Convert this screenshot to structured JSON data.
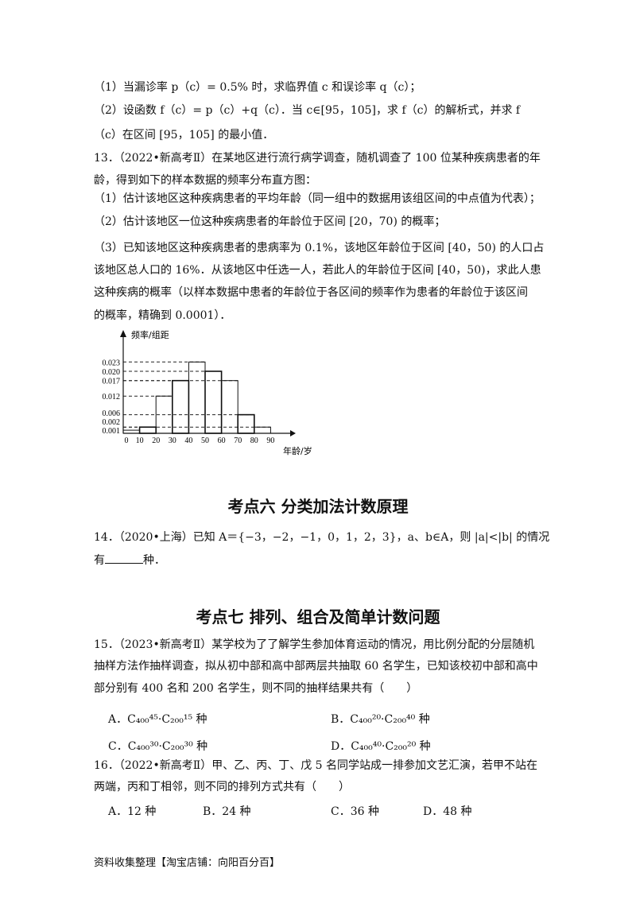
{
  "q12_parts": [
    "（1）当漏诊率 p（c）= 0.5% 时，求临界值 c 和误诊率 q（c）；",
    "（2）设函数 f（c）= p（c）+q（c）．当 c∈[95，105]，求 f（c）的解析式，并求 f",
    "（c）在区间 [95，105] 的最小值．"
  ],
  "q13": {
    "lines": [
      "13．（2022•新高考Ⅱ）在某地区进行流行病学调查，随机调查了 100 位某种疾病患者的年",
      "龄，得到如下的样本数据的频率分布直方图：",
      "（1）估计该地区这种疾病患者的平均年龄（同一组中的数据用该组区间的中点值为代表）；",
      "（2）估计该地区一位这种疾病患者的年龄位于区间 [20，70) 的概率；",
      "（3）已知该地区这种疾病患者的患病率为 0.1%，该地区年龄位于区间 [40，50) 的人口占",
      "该地区总人口的 16%．从该地区中任选一人，若此人的年龄位于区间 [40，50)，求此人患",
      "这种疾病的概率（以样本数据中患者的年龄位于各区间的频率作为患者的年龄位于该区间",
      "的概率，精确到 0.0001）．"
    ]
  },
  "chart_data": {
    "type": "bar",
    "title": "",
    "xlabel": "年龄/岁",
    "ylabel": "频率/组距",
    "x_ticks": [
      "0",
      "10",
      "20",
      "30",
      "40",
      "50",
      "60",
      "70",
      "80",
      "90"
    ],
    "y_ticks": [
      "0.001",
      "0.002",
      "0.006",
      "0.012",
      "0.017",
      "0.020",
      "0.023"
    ],
    "bins": [
      [
        0,
        10
      ],
      [
        10,
        20
      ],
      [
        20,
        30
      ],
      [
        30,
        40
      ],
      [
        40,
        50
      ],
      [
        50,
        60
      ],
      [
        60,
        70
      ],
      [
        70,
        80
      ],
      [
        80,
        90
      ]
    ],
    "values": [
      0.001,
      0.002,
      0.012,
      0.017,
      0.023,
      0.02,
      0.017,
      0.006,
      0.002
    ],
    "grid": false
  },
  "section6": "考点六  分类加法计数原理",
  "q14": {
    "line1": "14．（2020•上海）已知 A＝{−3，−2，−1，0，1，2，3}，a、b∈A，则 |a|<|b| 的情况",
    "line2_pre": "有",
    "line2_post": "种．"
  },
  "section7": "考点七  排列、组合及简单计数问题",
  "q15": {
    "lines": [
      "15．（2023•新高考Ⅱ）某学校为了了解学生参加体育运动的情况，用比例分配的分层随机",
      "抽样方法作抽样调查，拟从初中部和高中部两层共抽取 60 名学生，已知该校初中部和高中",
      "部分别有 400 名和 200 名学生，则不同的抽样结果共有（　　）"
    ],
    "options": [
      "A．C₄₀₀⁴⁵·C₂₀₀¹⁵ 种",
      "B．C₄₀₀²⁰·C₂₀₀⁴⁰ 种",
      "C．C₄₀₀³⁰·C₂₀₀³⁰ 种",
      "D．C₄₀₀⁴⁰·C₂₀₀²⁰ 种"
    ]
  },
  "q16": {
    "lines": [
      "16．（2022•新高考Ⅱ）甲、乙、丙、丁、戊 5 名同学站成一排参加文艺汇演，若甲不站在",
      "两端，丙和丁相邻，则不同的排列方式共有（　　）"
    ],
    "options": [
      "A．12 种",
      "B．24 种",
      "C．36 种",
      "D．48 种"
    ]
  },
  "footer": "资料收集整理【淘宝店铺：向阳百分百】"
}
